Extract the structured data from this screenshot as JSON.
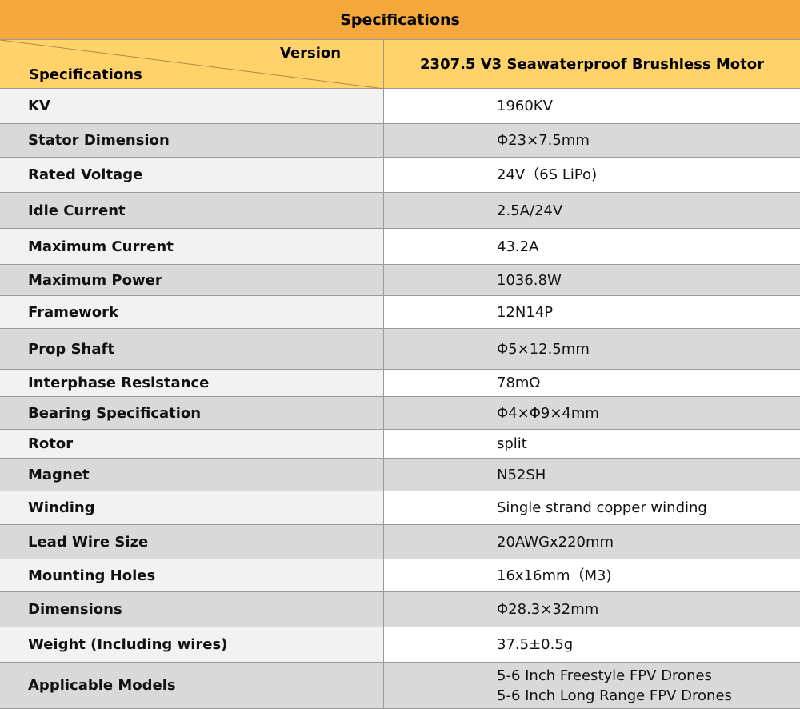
{
  "header": {
    "title": "Specifications",
    "version": "Version",
    "specifications": "Specifications",
    "product": "2307.5 V3 Seawaterproof Brushless Motor"
  },
  "table": {
    "rows": [
      [
        "KV",
        "1960KV"
      ],
      [
        "Stator Dimension",
        "Φ23×7.5mm"
      ],
      [
        "Rated Voltage",
        "24V（6S LiPo)"
      ],
      [
        "Idle Current",
        "2.5A/24V"
      ],
      [
        "Maximum Current",
        "43.2A"
      ],
      [
        "Maximum Power",
        "1036.8W"
      ],
      [
        "Framework",
        "12N14P"
      ],
      [
        "Prop Shaft",
        "Φ5×12.5mm"
      ],
      [
        "Interphase Resistance",
        "78mΩ"
      ],
      [
        "Bearing Specification",
        "Φ4×Φ9×4mm"
      ],
      [
        "Rotor",
        "split"
      ],
      [
        "Magnet",
        "N52SH"
      ],
      [
        "Winding",
        "Single strand copper winding"
      ],
      [
        "Lead Wire Size",
        "20AWGx220mm"
      ],
      [
        "Mounting Holes",
        "16x16mm（M3)"
      ],
      [
        "Dimensions",
        "Φ28.3×32mm"
      ],
      [
        "Weight (Including wires)",
        "37.5±0.5g"
      ],
      [
        "Applicable Models",
        [
          "5-6 Inch Freestyle FPV Drones",
          "5-6 Inch Long Range FPV Drones"
        ]
      ]
    ]
  }
}
